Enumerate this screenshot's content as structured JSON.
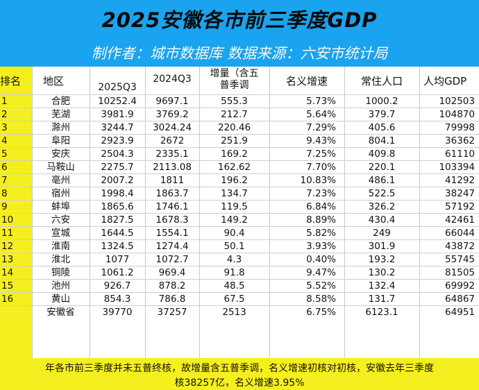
{
  "title": "2025安徽各市前三季度GDP",
  "subtitle": "制作者：城市数据库 数据来源：六安市统计局",
  "headers": {
    "rank": "排名",
    "district": "地区",
    "q3_2025": "2025Q3",
    "q3_2024": "2024Q3",
    "increment_line1": "增量（含五",
    "increment_line2": "普季调",
    "growth": "名义增速",
    "population": "常住人口",
    "per_capita": "人均GDP"
  },
  "rows": [
    {
      "rank": "1",
      "name": "合肥",
      "q3_2025": "10252.4",
      "q3_2024": "9697.1",
      "inc": "555.3",
      "growth": "5.73%",
      "pop": "1000.2",
      "pc": "102503"
    },
    {
      "rank": "2",
      "name": "芜湖",
      "q3_2025": "3981.9",
      "q3_2024": "3769.2",
      "inc": "212.7",
      "growth": "5.64%",
      "pop": "379.7",
      "pc": "104870"
    },
    {
      "rank": "3",
      "name": "滁州",
      "q3_2025": "3244.7",
      "q3_2024": "3024.24",
      "inc": "220.46",
      "growth": "7.29%",
      "pop": "405.6",
      "pc": "79998"
    },
    {
      "rank": "4",
      "name": "阜阳",
      "q3_2025": "2923.9",
      "q3_2024": "2672",
      "inc": "251.9",
      "growth": "9.43%",
      "pop": "804.1",
      "pc": "36362"
    },
    {
      "rank": "5",
      "name": "安庆",
      "q3_2025": "2504.3",
      "q3_2024": "2335.1",
      "inc": "169.2",
      "growth": "7.25%",
      "pop": "409.8",
      "pc": "61110"
    },
    {
      "rank": "6",
      "name": "马鞍山",
      "q3_2025": "2275.7",
      "q3_2024": "2113.08",
      "inc": "162.62",
      "growth": "7.70%",
      "pop": "220.1",
      "pc": "103394"
    },
    {
      "rank": "7",
      "name": "亳州",
      "q3_2025": "2007.2",
      "q3_2024": "1811",
      "inc": "196.2",
      "growth": "10.83%",
      "pop": "486.1",
      "pc": "41292"
    },
    {
      "rank": "8",
      "name": "宿州",
      "q3_2025": "1998.4",
      "q3_2024": "1863.7",
      "inc": "134.7",
      "growth": "7.23%",
      "pop": "522.5",
      "pc": "38247"
    },
    {
      "rank": "9",
      "name": "蚌埠",
      "q3_2025": "1865.6",
      "q3_2024": "1746.1",
      "inc": "119.5",
      "growth": "6.84%",
      "pop": "326.2",
      "pc": "57192"
    },
    {
      "rank": "10",
      "name": "六安",
      "q3_2025": "1827.5",
      "q3_2024": "1678.3",
      "inc": "149.2",
      "growth": "8.89%",
      "pop": "430.4",
      "pc": "42461"
    },
    {
      "rank": "11",
      "name": "宣城",
      "q3_2025": "1644.5",
      "q3_2024": "1554.1",
      "inc": "90.4",
      "growth": "5.82%",
      "pop": "249",
      "pc": "66044"
    },
    {
      "rank": "12",
      "name": "淮南",
      "q3_2025": "1324.5",
      "q3_2024": "1274.4",
      "inc": "50.1",
      "growth": "3.93%",
      "pop": "301.9",
      "pc": "43872"
    },
    {
      "rank": "13",
      "name": "淮北",
      "q3_2025": "1077",
      "q3_2024": "1072.7",
      "inc": "4.3",
      "growth": "0.40%",
      "pop": "193.2",
      "pc": "55745"
    },
    {
      "rank": "14",
      "name": "铜陵",
      "q3_2025": "1061.2",
      "q3_2024": "969.4",
      "inc": "91.8",
      "growth": "9.47%",
      "pop": "130.2",
      "pc": "81505"
    },
    {
      "rank": "15",
      "name": "池州",
      "q3_2025": "926.7",
      "q3_2024": "878.2",
      "inc": "48.5",
      "growth": "5.52%",
      "pop": "132.4",
      "pc": "69992"
    },
    {
      "rank": "16",
      "name": "黄山",
      "q3_2025": "854.3",
      "q3_2024": "786.8",
      "inc": "67.5",
      "growth": "8.58%",
      "pop": "131.7",
      "pc": "64867"
    },
    {
      "rank": "",
      "name": "安徽省",
      "q3_2025": "39770",
      "q3_2024": "37257",
      "inc": "2513",
      "growth": "6.75%",
      "pop": "6123.1",
      "pc": "64951"
    }
  ],
  "footer": {
    "line1": "年各市前三季度并未五普终核，故增量含五普季调，名义增速初核对初核，安徽去年三季度",
    "line2": "核38257亿，名义增速3.95%"
  }
}
